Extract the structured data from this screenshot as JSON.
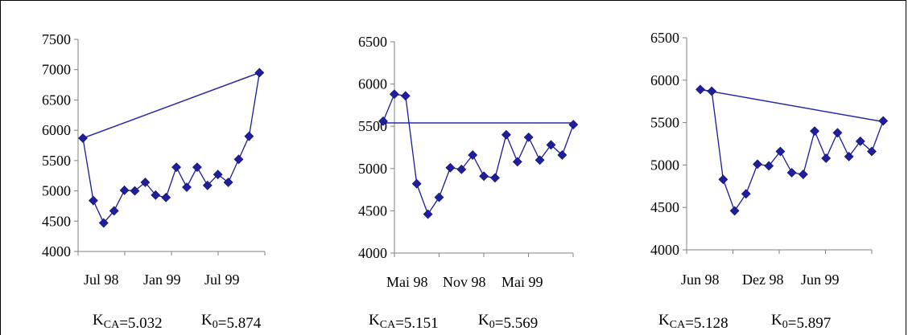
{
  "chart_data": [
    {
      "type": "line",
      "x_tick_labels": [
        "Jul 98",
        "Jan 99",
        "Jul 99"
      ],
      "ylim": [
        4000,
        7500
      ],
      "yticks": [
        4000,
        4500,
        5000,
        5500,
        6000,
        6500,
        7000,
        7500
      ],
      "series": [
        {
          "values": [
            5870,
            4840,
            4470,
            4670,
            5010,
            5000,
            5140,
            4930,
            4890,
            5390,
            5060,
            5390,
            5090,
            5270,
            5140,
            5520,
            5900,
            6950
          ]
        },
        {
          "x_index": [
            0,
            17
          ],
          "values": [
            5870,
            6950
          ]
        }
      ],
      "annotation": {
        "kca": "K<sub>CA</sub>=5.032",
        "k0": "K<sub>0</sub>=5.874"
      },
      "grid": false
    },
    {
      "type": "line",
      "x_tick_labels": [
        "Mai 98",
        "Nov 98",
        "Mai 99"
      ],
      "ylim": [
        4000,
        6500
      ],
      "yticks": [
        4000,
        4500,
        5000,
        5500,
        6000,
        6500
      ],
      "series": [
        {
          "values": [
            5560,
            5880,
            5860,
            4820,
            4460,
            4660,
            5010,
            4990,
            5160,
            4910,
            4890,
            5400,
            5080,
            5370,
            5100,
            5280,
            5160,
            5520
          ]
        },
        {
          "x_index": [
            0,
            17
          ],
          "values": [
            5540,
            5540
          ]
        }
      ],
      "annotation": {
        "kca": "K<sub>CA</sub>=5.151",
        "k0": "K<sub>0</sub>=5.569"
      },
      "grid": false
    },
    {
      "type": "line",
      "x_tick_labels": [
        "Jun 98",
        "Dez 98",
        "Jun 99"
      ],
      "ylim": [
        4000,
        6500
      ],
      "yticks": [
        4000,
        4500,
        5000,
        5500,
        6000,
        6500
      ],
      "series": [
        {
          "values": [
            5890,
            5870,
            4830,
            4460,
            4660,
            5010,
            4990,
            5160,
            4910,
            4890,
            5400,
            5080,
            5380,
            5100,
            5280,
            5160,
            5520
          ]
        },
        {
          "x_index": [
            0,
            16
          ],
          "values": [
            5890,
            5510
          ]
        }
      ],
      "annotation": {
        "kca": "K<sub>CA</sub>=5.128",
        "k0": "K<sub>0</sub>=5.897"
      },
      "grid": false
    }
  ]
}
